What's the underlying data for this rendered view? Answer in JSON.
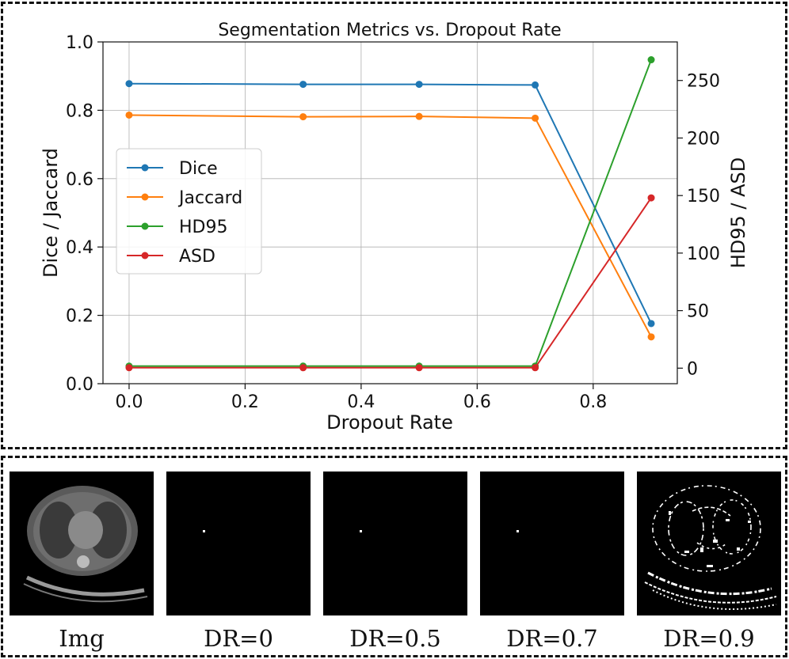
{
  "chart_data": {
    "type": "line",
    "title": "Segmentation Metrics vs. Dropout Rate",
    "xlabel": "Dropout Rate",
    "ylabel": "Dice / Jaccard",
    "y2label": "HD95 / ASD",
    "x": [
      0.0,
      0.3,
      0.5,
      0.7,
      0.9
    ],
    "xlim": [
      -0.045,
      0.945
    ],
    "ylim": [
      0.0,
      1.0
    ],
    "y2lim": [
      -13.5,
      283.5
    ],
    "xticks": [
      "0.0",
      "0.2",
      "0.4",
      "0.6",
      "0.8"
    ],
    "yticks": [
      "0.0",
      "0.2",
      "0.4",
      "0.6",
      "0.8",
      "1.0"
    ],
    "y2ticks": [
      "0",
      "50",
      "100",
      "150",
      "200",
      "250"
    ],
    "grid": true,
    "legend_position": "center-left",
    "series": [
      {
        "name": "Dice",
        "axis": "left",
        "color": "#1f77b4",
        "values": [
          0.878,
          0.876,
          0.876,
          0.874,
          0.176
        ]
      },
      {
        "name": "Jaccard",
        "axis": "left",
        "color": "#ff7f0e",
        "values": [
          0.786,
          0.781,
          0.782,
          0.777,
          0.137
        ]
      },
      {
        "name": "HD95",
        "axis": "right",
        "color": "#2ca02c",
        "values": [
          1.8,
          1.8,
          1.8,
          1.8,
          268.0
        ]
      },
      {
        "name": "ASD",
        "axis": "right",
        "color": "#d62728",
        "values": [
          0.4,
          0.4,
          0.4,
          0.4,
          148.0
        ]
      }
    ]
  },
  "panels": [
    {
      "caption": "Img"
    },
    {
      "caption": "DR=0"
    },
    {
      "caption": "DR=0.5"
    },
    {
      "caption": "DR=0.7"
    },
    {
      "caption": "DR=0.9"
    }
  ]
}
